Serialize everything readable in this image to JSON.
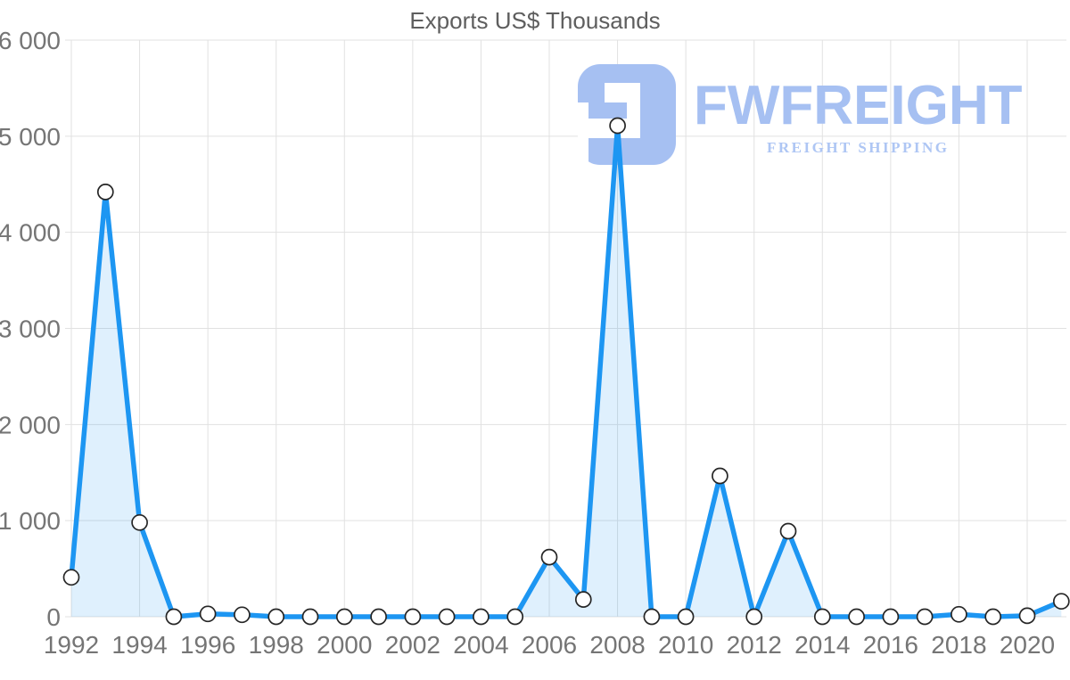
{
  "header": {
    "title": "Exports US$ Thousands"
  },
  "watermark": {
    "brand": "FWFREIGHT",
    "tagline": "FREIGHT SHIPPING",
    "logo_icon": "fwfreight-mark",
    "color_primary": "#a6c0f2",
    "color_tagline": "#aec6f4"
  },
  "colors": {
    "line": "#1d96f2",
    "area": "rgba(29,150,242,0.14)",
    "grid": "#e1e1e1",
    "axis_text": "#757575",
    "title_text": "#5e5e5e",
    "marker_fill": "#ffffff",
    "marker_stroke": "#262626"
  },
  "chart_data": {
    "type": "area",
    "title": "Exports US$ Thousands",
    "xlabel": "",
    "ylabel": "",
    "x": [
      1992,
      1993,
      1994,
      1995,
      1996,
      1997,
      1998,
      1999,
      2000,
      2001,
      2002,
      2003,
      2004,
      2005,
      2006,
      2007,
      2008,
      2009,
      2010,
      2011,
      2012,
      2013,
      2014,
      2015,
      2016,
      2017,
      2018,
      2019,
      2020,
      2021
    ],
    "values": [
      410,
      4420,
      980,
      0,
      30,
      20,
      0,
      0,
      0,
      0,
      0,
      0,
      0,
      0,
      620,
      180,
      5110,
      0,
      0,
      1465,
      0,
      890,
      0,
      0,
      0,
      0,
      25,
      0,
      10,
      160
    ],
    "ylim": [
      0,
      6000
    ],
    "yticks": [
      0,
      1000,
      2000,
      3000,
      4000,
      5000,
      6000
    ],
    "ytick_labels": [
      "0",
      "1 000",
      "2 000",
      "3 000",
      "4 000",
      "5 000",
      "6 000"
    ],
    "xticks": [
      1992,
      1994,
      1996,
      1998,
      2000,
      2002,
      2004,
      2006,
      2008,
      2010,
      2012,
      2014,
      2016,
      2018,
      2020
    ],
    "grid": true,
    "legend": false
  }
}
